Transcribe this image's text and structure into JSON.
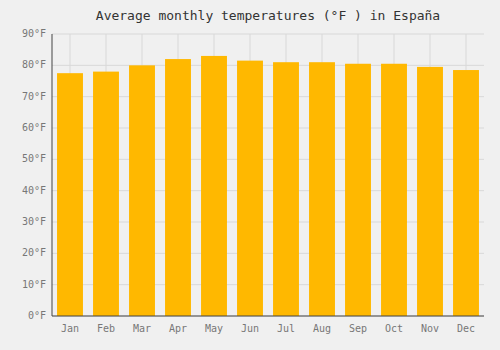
{
  "chart_data": {
    "type": "bar",
    "title": "Average monthly temperatures (°F ) in España",
    "categories": [
      "Jan",
      "Feb",
      "Mar",
      "Apr",
      "May",
      "Jun",
      "Jul",
      "Aug",
      "Sep",
      "Oct",
      "Nov",
      "Dec"
    ],
    "values": [
      77.5,
      78.0,
      80.0,
      82.0,
      83.0,
      81.5,
      81.0,
      81.0,
      80.5,
      80.5,
      79.5,
      78.5
    ],
    "color": "#FFB800",
    "ylim": [
      0,
      90
    ],
    "yticks": [
      {
        "value": 0,
        "label": "0°F"
      },
      {
        "value": 10,
        "label": "10°F"
      },
      {
        "value": 20,
        "label": "20°F"
      },
      {
        "value": 30,
        "label": "30°F"
      },
      {
        "value": 40,
        "label": "40°F"
      },
      {
        "value": 50,
        "label": "50°F"
      },
      {
        "value": 60,
        "label": "60°F"
      },
      {
        "value": 70,
        "label": "70°F"
      },
      {
        "value": 80,
        "label": "80°F"
      },
      {
        "value": 90,
        "label": "90°F"
      }
    ],
    "grid": true
  }
}
